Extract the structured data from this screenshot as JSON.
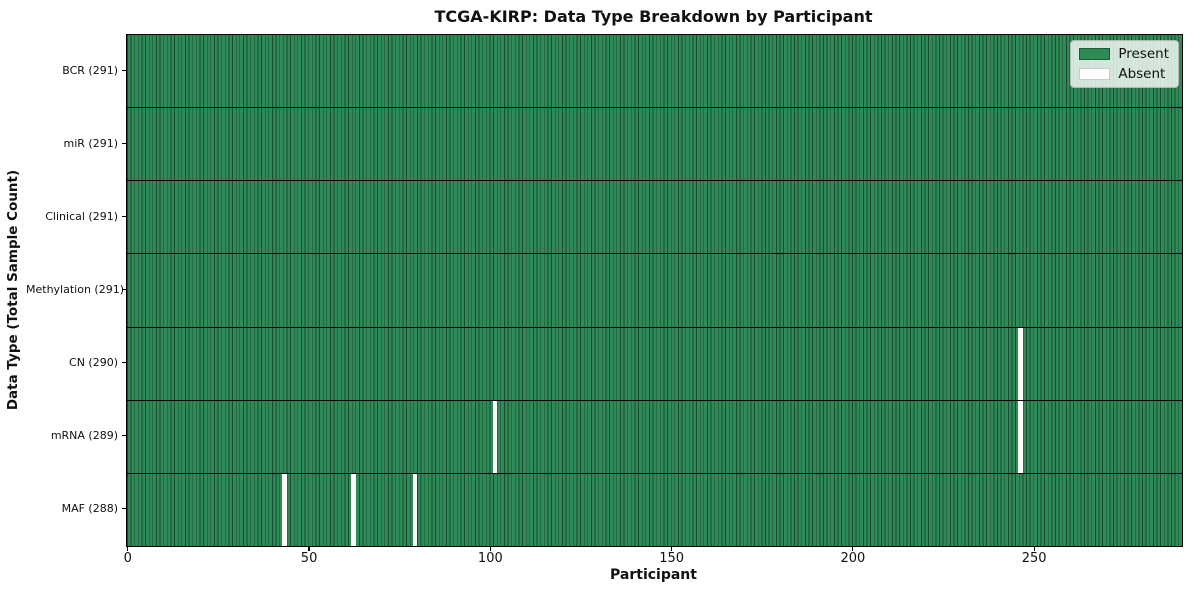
{
  "chart_data": {
    "type": "heatmap",
    "title": "TCGA-KIRP: Data Type Breakdown by Participant",
    "xlabel": "Participant",
    "ylabel": "Data Type (Total Sample Count)",
    "x_ticks": [
      0,
      50,
      100,
      150,
      200,
      250
    ],
    "xlim": [
      -0.5,
      290.5
    ],
    "n_participants": 291,
    "grid": true,
    "legend_position": "upper right",
    "legend_items": [
      {
        "label": "Present",
        "color": "#2e8b57"
      },
      {
        "label": "Absent",
        "color": "#ffffff"
      }
    ],
    "colors": {
      "present": "#2e8b57",
      "absent": "#ffffff",
      "cell_edge": "#1b4a2f",
      "row_separator": "#000000",
      "spine": "#000000"
    },
    "rows": [
      {
        "label": "BCR (291)",
        "data_type": "BCR",
        "total": 291,
        "absent_participants": []
      },
      {
        "label": "miR (291)",
        "data_type": "miR",
        "total": 291,
        "absent_participants": []
      },
      {
        "label": "Clinical (291)",
        "data_type": "Clinical",
        "total": 291,
        "absent_participants": []
      },
      {
        "label": "Methylation (291)",
        "data_type": "Methylation",
        "total": 291,
        "absent_participants": []
      },
      {
        "label": "CN (290)",
        "data_type": "CN",
        "total": 290,
        "absent_participants": [
          246
        ]
      },
      {
        "label": "mRNA (289)",
        "data_type": "mRNA",
        "total": 289,
        "absent_participants": [
          101,
          246
        ]
      },
      {
        "label": "MAF (288)",
        "data_type": "MAF",
        "total": 288,
        "absent_participants": [
          43,
          62,
          79
        ]
      }
    ]
  }
}
